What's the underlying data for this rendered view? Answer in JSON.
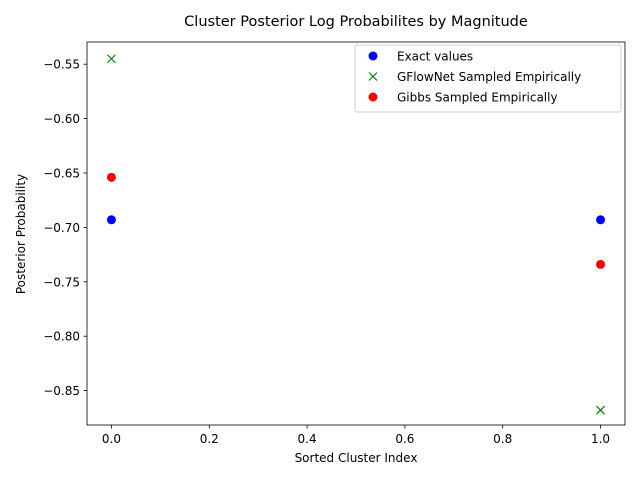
{
  "chart_data": {
    "type": "scatter",
    "title": "Cluster Posterior Log Probabilites by Magnitude",
    "xlabel": "Sorted Cluster Index",
    "ylabel": "Posterior Probability",
    "xlim": [
      -0.05,
      1.05
    ],
    "ylim": [
      -0.8816,
      -0.5296
    ],
    "xticks": [
      0.0,
      0.2,
      0.4,
      0.6,
      0.8,
      1.0
    ],
    "xtick_labels": [
      "0.0",
      "0.2",
      "0.4",
      "0.6",
      "0.8",
      "1.0"
    ],
    "yticks": [
      -0.85,
      -0.8,
      -0.75,
      -0.7,
      -0.65,
      -0.6,
      -0.55
    ],
    "ytick_labels": [
      "−0.85",
      "−0.80",
      "−0.75",
      "−0.70",
      "−0.65",
      "−0.60",
      "−0.55"
    ],
    "grid": false,
    "legend_position": "top-right",
    "series": [
      {
        "name": "Exact values",
        "marker": "circle",
        "color": "#0000ff",
        "x": [
          0,
          1
        ],
        "y": [
          -0.693,
          -0.693
        ]
      },
      {
        "name": "GFlowNet Sampled Empirically",
        "marker": "x",
        "color": "#008000",
        "x": [
          0,
          1
        ],
        "y": [
          -0.545,
          -0.868
        ]
      },
      {
        "name": "Gibbs Sampled Empirically",
        "marker": "circle",
        "color": "#ff0000",
        "x": [
          0,
          1
        ],
        "y": [
          -0.654,
          -0.734
        ]
      }
    ]
  }
}
